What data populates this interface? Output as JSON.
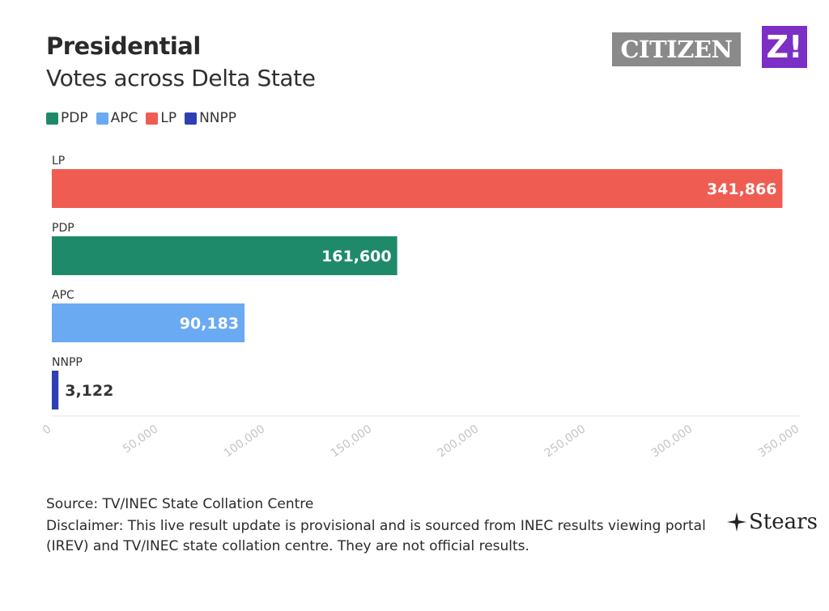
{
  "header": {
    "title": "Presidential",
    "subtitle": "Votes across Delta State"
  },
  "logos": {
    "citizen": "CITIZEN",
    "z": "Z!",
    "brand": "Stears"
  },
  "legend": [
    {
      "label": "PDP",
      "color": "#1f8a6a"
    },
    {
      "label": "APC",
      "color": "#6aaaf2"
    },
    {
      "label": "LP",
      "color": "#ef5d52"
    },
    {
      "label": "NNPP",
      "color": "#2f3fb3"
    }
  ],
  "chart_data": {
    "type": "bar",
    "orientation": "horizontal",
    "categories": [
      "LP",
      "PDP",
      "APC",
      "NNPP"
    ],
    "values": [
      341866,
      161600,
      90183,
      3122
    ],
    "value_labels": [
      "341,866",
      "161,600",
      "90,183",
      "3,122"
    ],
    "colors": [
      "#ef5d52",
      "#1f8a6a",
      "#6aaaf2",
      "#2f3fb3"
    ],
    "xlim": [
      0,
      350000
    ],
    "xticks": [
      0,
      50000,
      100000,
      150000,
      200000,
      250000,
      300000,
      350000
    ],
    "xtick_labels": [
      "0",
      "50,000",
      "100,000",
      "150,000",
      "200,000",
      "250,000",
      "300,000",
      "350,000"
    ],
    "grid": false
  },
  "footer": {
    "source": "Source: TV/INEC State Collation Centre",
    "disclaimer": "Disclaimer: This live result update is provisional and is sourced from INEC results viewing portal (IREV) and TV/INEC state collation centre. They are not official results."
  }
}
